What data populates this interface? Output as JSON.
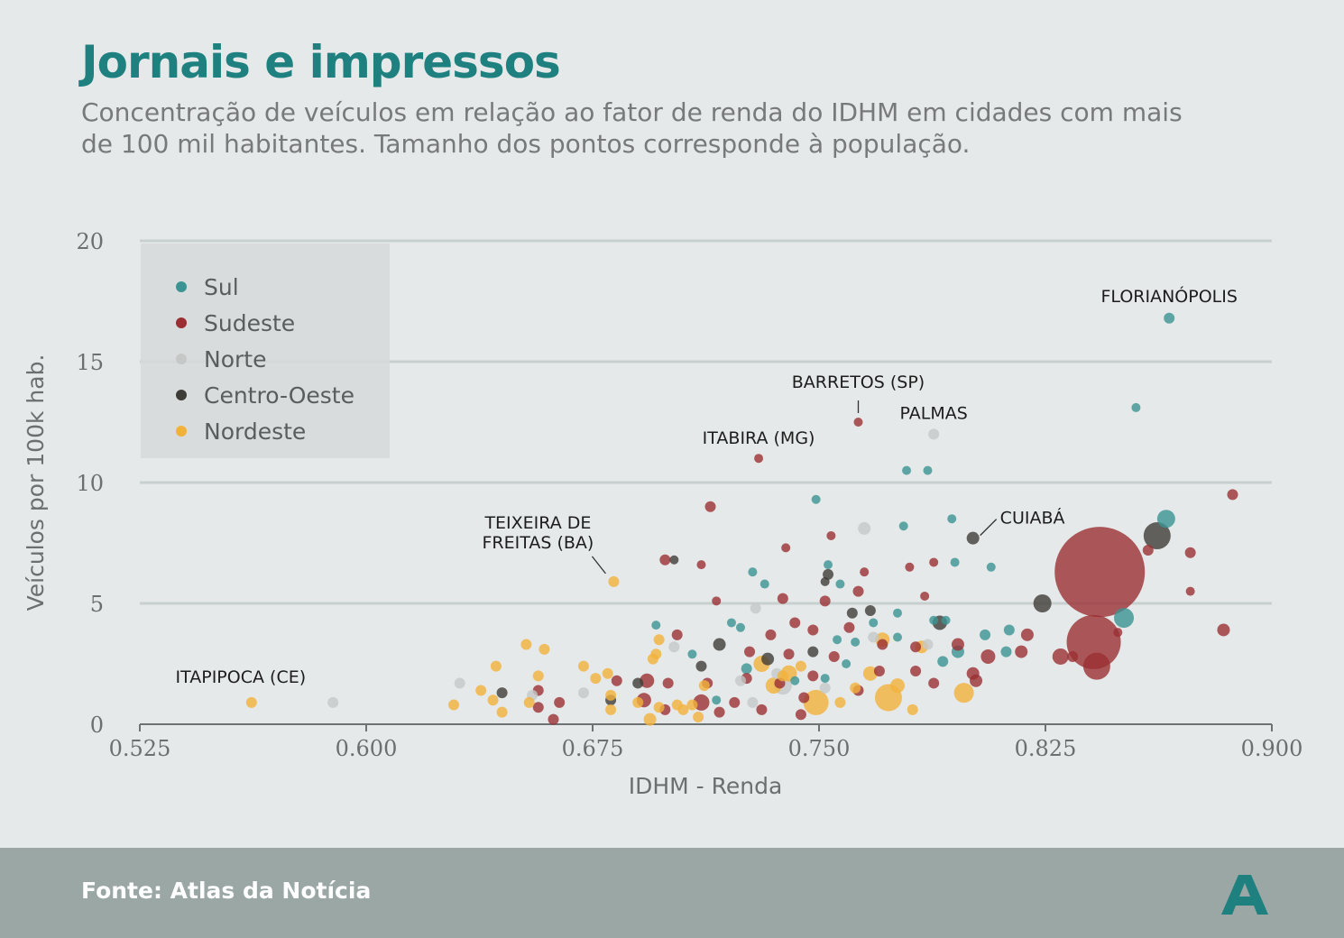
{
  "header": {
    "title": "Jornais e impressos",
    "subtitle": "Concentração de veículos em relação ao fator de renda do IDHM em cidades com mais de 100 mil habitantes. Tamanho dos pontos corresponde à população."
  },
  "footer": {
    "source": "Fonte: Atlas da Notícia",
    "logo_letter": "A"
  },
  "colors": {
    "Sul": "#3b9494",
    "Sudeste": "#9b2f33",
    "Norte": "#c6c8c8",
    "Centro-Oeste": "#3e3c37",
    "Nordeste": "#f2b13b",
    "title": "#1f8080",
    "footer": "#9aa7a5"
  },
  "chart_data": {
    "type": "scatter",
    "title": "Jornais e impressos",
    "xlabel": "IDHM - Renda",
    "ylabel": "Veículos por 100k hab.",
    "xlim": [
      0.525,
      0.9
    ],
    "ylim": [
      0,
      20
    ],
    "x_ticks": [
      "0.525",
      "0.600",
      "0.675",
      "0.750",
      "0.825",
      "0.900"
    ],
    "y_ticks": [
      "0",
      "5",
      "10",
      "15",
      "20"
    ],
    "grid": "horizontal",
    "legend_position": "top-left",
    "series": [
      {
        "name": "Sul",
        "points": [
          {
            "x": 0.866,
            "y": 16.8,
            "r": 6
          },
          {
            "x": 0.855,
            "y": 13.1,
            "r": 5
          },
          {
            "x": 0.865,
            "y": 8.5,
            "r": 10
          },
          {
            "x": 0.851,
            "y": 4.4,
            "r": 11
          },
          {
            "x": 0.749,
            "y": 9.3,
            "r": 5
          },
          {
            "x": 0.779,
            "y": 10.5,
            "r": 5
          },
          {
            "x": 0.786,
            "y": 10.5,
            "r": 5
          },
          {
            "x": 0.778,
            "y": 8.2,
            "r": 5
          },
          {
            "x": 0.794,
            "y": 8.5,
            "r": 5
          },
          {
            "x": 0.795,
            "y": 6.7,
            "r": 5
          },
          {
            "x": 0.807,
            "y": 6.5,
            "r": 5
          },
          {
            "x": 0.728,
            "y": 6.3,
            "r": 5
          },
          {
            "x": 0.753,
            "y": 6.6,
            "r": 5
          },
          {
            "x": 0.732,
            "y": 5.8,
            "r": 5
          },
          {
            "x": 0.757,
            "y": 5.8,
            "r": 5
          },
          {
            "x": 0.696,
            "y": 4.1,
            "r": 5
          },
          {
            "x": 0.721,
            "y": 4.2,
            "r": 5
          },
          {
            "x": 0.724,
            "y": 4.0,
            "r": 5
          },
          {
            "x": 0.776,
            "y": 4.6,
            "r": 5
          },
          {
            "x": 0.788,
            "y": 4.3,
            "r": 5
          },
          {
            "x": 0.792,
            "y": 4.3,
            "r": 5
          },
          {
            "x": 0.805,
            "y": 3.7,
            "r": 6
          },
          {
            "x": 0.813,
            "y": 3.9,
            "r": 6
          },
          {
            "x": 0.812,
            "y": 3.0,
            "r": 6
          },
          {
            "x": 0.796,
            "y": 3.0,
            "r": 7
          },
          {
            "x": 0.756,
            "y": 3.5,
            "r": 5
          },
          {
            "x": 0.762,
            "y": 3.4,
            "r": 5
          },
          {
            "x": 0.768,
            "y": 4.2,
            "r": 5
          },
          {
            "x": 0.776,
            "y": 3.6,
            "r": 5
          },
          {
            "x": 0.791,
            "y": 2.6,
            "r": 6
          },
          {
            "x": 0.708,
            "y": 2.9,
            "r": 5
          },
          {
            "x": 0.726,
            "y": 2.3,
            "r": 6
          },
          {
            "x": 0.742,
            "y": 1.8,
            "r": 5
          },
          {
            "x": 0.752,
            "y": 1.9,
            "r": 5
          },
          {
            "x": 0.716,
            "y": 1.0,
            "r": 5
          },
          {
            "x": 0.759,
            "y": 2.5,
            "r": 5
          }
        ]
      },
      {
        "name": "Sudeste",
        "points": [
          {
            "x": 0.843,
            "y": 6.3,
            "r": 50
          },
          {
            "x": 0.841,
            "y": 3.4,
            "r": 30
          },
          {
            "x": 0.842,
            "y": 2.4,
            "r": 15
          },
          {
            "x": 0.887,
            "y": 9.5,
            "r": 6
          },
          {
            "x": 0.873,
            "y": 7.1,
            "r": 6
          },
          {
            "x": 0.873,
            "y": 5.5,
            "r": 5
          },
          {
            "x": 0.884,
            "y": 3.9,
            "r": 7
          },
          {
            "x": 0.859,
            "y": 7.2,
            "r": 6
          },
          {
            "x": 0.849,
            "y": 3.8,
            "r": 5
          },
          {
            "x": 0.763,
            "y": 12.5,
            "r": 5
          },
          {
            "x": 0.73,
            "y": 11.0,
            "r": 5
          },
          {
            "x": 0.714,
            "y": 9.0,
            "r": 6
          },
          {
            "x": 0.754,
            "y": 7.8,
            "r": 5
          },
          {
            "x": 0.739,
            "y": 7.3,
            "r": 5
          },
          {
            "x": 0.711,
            "y": 6.6,
            "r": 5
          },
          {
            "x": 0.699,
            "y": 6.8,
            "r": 6
          },
          {
            "x": 0.765,
            "y": 6.3,
            "r": 5
          },
          {
            "x": 0.78,
            "y": 6.5,
            "r": 5
          },
          {
            "x": 0.788,
            "y": 6.7,
            "r": 5
          },
          {
            "x": 0.716,
            "y": 5.1,
            "r": 5
          },
          {
            "x": 0.738,
            "y": 5.2,
            "r": 6
          },
          {
            "x": 0.752,
            "y": 5.1,
            "r": 6
          },
          {
            "x": 0.763,
            "y": 5.5,
            "r": 6
          },
          {
            "x": 0.785,
            "y": 5.3,
            "r": 5
          },
          {
            "x": 0.734,
            "y": 3.7,
            "r": 6
          },
          {
            "x": 0.742,
            "y": 4.2,
            "r": 6
          },
          {
            "x": 0.748,
            "y": 3.9,
            "r": 6
          },
          {
            "x": 0.76,
            "y": 4.0,
            "r": 6
          },
          {
            "x": 0.771,
            "y": 3.3,
            "r": 6
          },
          {
            "x": 0.782,
            "y": 3.2,
            "r": 6
          },
          {
            "x": 0.796,
            "y": 3.3,
            "r": 7
          },
          {
            "x": 0.806,
            "y": 2.8,
            "r": 8
          },
          {
            "x": 0.819,
            "y": 3.7,
            "r": 7
          },
          {
            "x": 0.817,
            "y": 3.0,
            "r": 7
          },
          {
            "x": 0.83,
            "y": 2.8,
            "r": 9
          },
          {
            "x": 0.834,
            "y": 2.8,
            "r": 6
          },
          {
            "x": 0.703,
            "y": 3.7,
            "r": 6
          },
          {
            "x": 0.727,
            "y": 3.0,
            "r": 6
          },
          {
            "x": 0.74,
            "y": 2.9,
            "r": 6
          },
          {
            "x": 0.755,
            "y": 2.8,
            "r": 6
          },
          {
            "x": 0.77,
            "y": 2.2,
            "r": 6
          },
          {
            "x": 0.782,
            "y": 2.2,
            "r": 6
          },
          {
            "x": 0.801,
            "y": 2.1,
            "r": 7
          },
          {
            "x": 0.802,
            "y": 1.8,
            "r": 7
          },
          {
            "x": 0.683,
            "y": 1.8,
            "r": 6
          },
          {
            "x": 0.693,
            "y": 1.8,
            "r": 8
          },
          {
            "x": 0.7,
            "y": 1.7,
            "r": 6
          },
          {
            "x": 0.713,
            "y": 1.7,
            "r": 6
          },
          {
            "x": 0.726,
            "y": 1.9,
            "r": 6
          },
          {
            "x": 0.737,
            "y": 1.7,
            "r": 6
          },
          {
            "x": 0.748,
            "y": 2.0,
            "r": 6
          },
          {
            "x": 0.657,
            "y": 1.4,
            "r": 6
          },
          {
            "x": 0.664,
            "y": 0.9,
            "r": 6
          },
          {
            "x": 0.692,
            "y": 1.0,
            "r": 8
          },
          {
            "x": 0.711,
            "y": 0.9,
            "r": 9
          },
          {
            "x": 0.722,
            "y": 0.9,
            "r": 6
          },
          {
            "x": 0.731,
            "y": 0.6,
            "r": 6
          },
          {
            "x": 0.745,
            "y": 1.1,
            "r": 6
          },
          {
            "x": 0.662,
            "y": 0.2,
            "r": 6
          },
          {
            "x": 0.657,
            "y": 0.7,
            "r": 6
          },
          {
            "x": 0.699,
            "y": 0.6,
            "r": 6
          },
          {
            "x": 0.717,
            "y": 0.5,
            "r": 6
          },
          {
            "x": 0.744,
            "y": 0.4,
            "r": 6
          },
          {
            "x": 0.763,
            "y": 1.4,
            "r": 6
          },
          {
            "x": 0.788,
            "y": 1.7,
            "r": 6
          }
        ]
      },
      {
        "name": "Norte",
        "points": [
          {
            "x": 0.788,
            "y": 12.0,
            "r": 6
          },
          {
            "x": 0.765,
            "y": 8.1,
            "r": 7
          },
          {
            "x": 0.631,
            "y": 1.7,
            "r": 6
          },
          {
            "x": 0.589,
            "y": 0.9,
            "r": 6
          },
          {
            "x": 0.655,
            "y": 1.2,
            "r": 6
          },
          {
            "x": 0.672,
            "y": 1.3,
            "r": 6
          },
          {
            "x": 0.702,
            "y": 3.2,
            "r": 6
          },
          {
            "x": 0.729,
            "y": 4.8,
            "r": 6
          },
          {
            "x": 0.728,
            "y": 0.9,
            "r": 6
          },
          {
            "x": 0.724,
            "y": 1.8,
            "r": 6
          },
          {
            "x": 0.736,
            "y": 2.1,
            "r": 6
          },
          {
            "x": 0.738,
            "y": 1.6,
            "r": 10
          },
          {
            "x": 0.752,
            "y": 1.5,
            "r": 6
          },
          {
            "x": 0.768,
            "y": 3.6,
            "r": 6
          },
          {
            "x": 0.786,
            "y": 3.3,
            "r": 6
          }
        ]
      },
      {
        "name": "Centro-Oeste",
        "points": [
          {
            "x": 0.801,
            "y": 7.7,
            "r": 7
          },
          {
            "x": 0.862,
            "y": 7.8,
            "r": 15
          },
          {
            "x": 0.824,
            "y": 5.0,
            "r": 10
          },
          {
            "x": 0.702,
            "y": 6.8,
            "r": 5
          },
          {
            "x": 0.753,
            "y": 6.2,
            "r": 6
          },
          {
            "x": 0.752,
            "y": 5.9,
            "r": 5
          },
          {
            "x": 0.79,
            "y": 4.2,
            "r": 8
          },
          {
            "x": 0.761,
            "y": 4.6,
            "r": 6
          },
          {
            "x": 0.767,
            "y": 4.7,
            "r": 6
          },
          {
            "x": 0.717,
            "y": 3.3,
            "r": 7
          },
          {
            "x": 0.711,
            "y": 2.4,
            "r": 6
          },
          {
            "x": 0.733,
            "y": 2.7,
            "r": 7
          },
          {
            "x": 0.69,
            "y": 1.7,
            "r": 6
          },
          {
            "x": 0.645,
            "y": 1.3,
            "r": 6
          },
          {
            "x": 0.681,
            "y": 1.0,
            "r": 6
          },
          {
            "x": 0.748,
            "y": 3.0,
            "r": 6
          }
        ]
      },
      {
        "name": "Nordeste",
        "points": [
          {
            "x": 0.682,
            "y": 5.9,
            "r": 6
          },
          {
            "x": 0.562,
            "y": 0.9,
            "r": 6
          },
          {
            "x": 0.629,
            "y": 0.8,
            "r": 6
          },
          {
            "x": 0.643,
            "y": 2.4,
            "r": 6
          },
          {
            "x": 0.638,
            "y": 1.4,
            "r": 6
          },
          {
            "x": 0.642,
            "y": 1.0,
            "r": 6
          },
          {
            "x": 0.645,
            "y": 0.5,
            "r": 6
          },
          {
            "x": 0.653,
            "y": 3.3,
            "r": 6
          },
          {
            "x": 0.659,
            "y": 3.1,
            "r": 6
          },
          {
            "x": 0.657,
            "y": 2.0,
            "r": 6
          },
          {
            "x": 0.654,
            "y": 0.9,
            "r": 6
          },
          {
            "x": 0.672,
            "y": 2.4,
            "r": 6
          },
          {
            "x": 0.68,
            "y": 2.1,
            "r": 6
          },
          {
            "x": 0.676,
            "y": 1.9,
            "r": 6
          },
          {
            "x": 0.681,
            "y": 1.2,
            "r": 6
          },
          {
            "x": 0.681,
            "y": 0.6,
            "r": 6
          },
          {
            "x": 0.69,
            "y": 0.9,
            "r": 6
          },
          {
            "x": 0.697,
            "y": 3.5,
            "r": 6
          },
          {
            "x": 0.696,
            "y": 2.9,
            "r": 6
          },
          {
            "x": 0.695,
            "y": 2.7,
            "r": 6
          },
          {
            "x": 0.697,
            "y": 0.7,
            "r": 6
          },
          {
            "x": 0.694,
            "y": 0.2,
            "r": 7
          },
          {
            "x": 0.703,
            "y": 0.8,
            "r": 6
          },
          {
            "x": 0.705,
            "y": 0.6,
            "r": 6
          },
          {
            "x": 0.708,
            "y": 0.8,
            "r": 6
          },
          {
            "x": 0.71,
            "y": 0.3,
            "r": 6
          },
          {
            "x": 0.712,
            "y": 1.6,
            "r": 6
          },
          {
            "x": 0.731,
            "y": 2.5,
            "r": 9
          },
          {
            "x": 0.74,
            "y": 2.1,
            "r": 9
          },
          {
            "x": 0.735,
            "y": 1.6,
            "r": 9
          },
          {
            "x": 0.749,
            "y": 0.9,
            "r": 14
          },
          {
            "x": 0.757,
            "y": 0.9,
            "r": 6
          },
          {
            "x": 0.762,
            "y": 1.5,
            "r": 6
          },
          {
            "x": 0.767,
            "y": 2.1,
            "r": 8
          },
          {
            "x": 0.771,
            "y": 3.5,
            "r": 8
          },
          {
            "x": 0.773,
            "y": 1.1,
            "r": 15
          },
          {
            "x": 0.776,
            "y": 1.6,
            "r": 8
          },
          {
            "x": 0.781,
            "y": 0.6,
            "r": 6
          },
          {
            "x": 0.784,
            "y": 3.2,
            "r": 7
          },
          {
            "x": 0.798,
            "y": 1.3,
            "r": 11
          },
          {
            "x": 0.738,
            "y": 2.0,
            "r": 6
          },
          {
            "x": 0.744,
            "y": 2.4,
            "r": 6
          }
        ]
      }
    ],
    "annotations": [
      {
        "text": "FLORIANÓPOLIS",
        "x": 0.866,
        "y": 16.8
      },
      {
        "text": "BARRETOS (SP)",
        "x": 0.763,
        "y": 12.5
      },
      {
        "text": "PALMAS",
        "x": 0.788,
        "y": 12.0
      },
      {
        "text": "ITABIRA (MG)",
        "x": 0.73,
        "y": 11.0
      },
      {
        "text": "CUIABÁ",
        "x": 0.801,
        "y": 7.7
      },
      {
        "text": "TEIXEIRA DE FREITAS (BA)",
        "x": 0.682,
        "y": 5.9
      },
      {
        "text": "ITAPIPOCA (CE)",
        "x": 0.562,
        "y": 0.9
      }
    ]
  }
}
